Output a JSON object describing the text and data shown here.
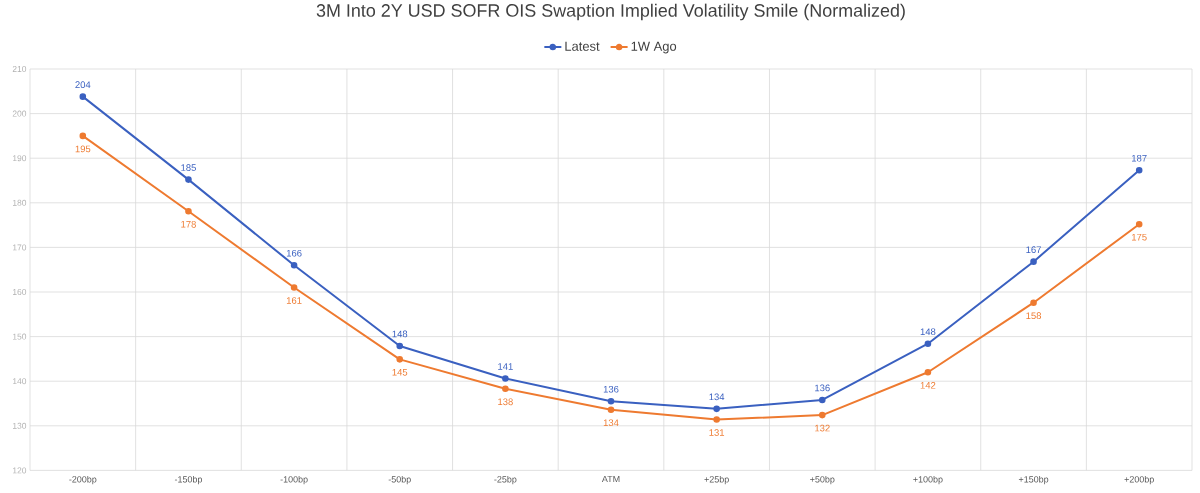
{
  "chart_data": {
    "type": "line",
    "title": "3M Into 2Y USD SOFR OIS Swaption Implied Volatility Smile (Normalized)",
    "categories": [
      "-200bp",
      "-150bp",
      "-100bp",
      "-50bp",
      "-25bp",
      "ATM",
      "+25bp",
      "+50bp",
      "+100bp",
      "+150bp",
      "+200bp"
    ],
    "series": [
      {
        "name": "Latest",
        "color": "#3a60c0",
        "values": [
          203.8,
          185.2,
          166.0,
          147.9,
          140.6,
          135.5,
          133.8,
          135.8,
          148.4,
          166.8,
          187.3
        ],
        "value_labels": [
          "204",
          "185",
          "166",
          "148",
          "141",
          "136",
          "134",
          "136",
          "148",
          "167",
          "187"
        ]
      },
      {
        "name": "1W Ago",
        "color": "#ee7a30",
        "values": [
          195.0,
          178.1,
          161.0,
          144.9,
          138.3,
          133.6,
          131.4,
          132.4,
          142.0,
          157.6,
          175.2
        ],
        "value_labels": [
          "195",
          "178",
          "161",
          "145",
          "138",
          "134",
          "131",
          "132",
          "142",
          "158",
          "175"
        ]
      }
    ],
    "ylim": [
      120,
      210
    ],
    "yticks": [
      120,
      130,
      140,
      150,
      160,
      170,
      180,
      190,
      200,
      210
    ],
    "grid": true,
    "legend": "top",
    "marker": "circle",
    "line_style": "solid"
  }
}
